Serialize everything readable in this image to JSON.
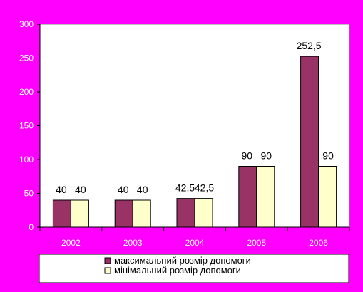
{
  "chart_data": {
    "type": "bar",
    "categories": [
      "2002",
      "2003",
      "2004",
      "2005",
      "2006"
    ],
    "series": [
      {
        "name": "максимальний розмір допомоги",
        "values": [
          40,
          40,
          42.5,
          90,
          252.5
        ],
        "labels": [
          "40",
          "40",
          "42,5",
          "90",
          "252,5"
        ],
        "color": "#993366"
      },
      {
        "name": "мінімальний розмір допомоги",
        "values": [
          40,
          40,
          42.5,
          90,
          90
        ],
        "labels": [
          "40",
          "40",
          "42,5",
          "90",
          "90"
        ],
        "color": "#ffffcc"
      }
    ],
    "ylim": [
      0,
      300
    ],
    "yticks": [
      0,
      50,
      100,
      150,
      200,
      250,
      300
    ],
    "grid": false,
    "legend_position": "bottom"
  },
  "colors": {
    "background": "#ff00ff",
    "plot_area": "#ffffff",
    "axis": "#000000"
  }
}
